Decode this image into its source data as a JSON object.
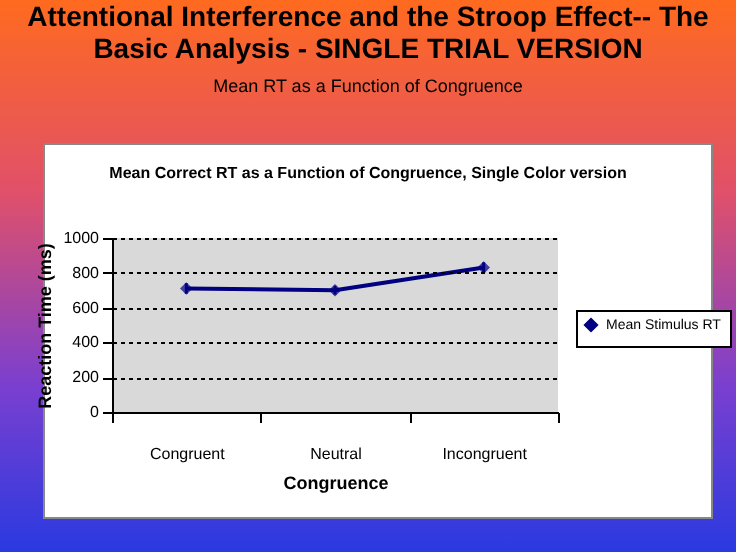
{
  "chart_data": {
    "type": "line",
    "title": "Attentional Interference and the Stroop Effect-- The Basic Analysis - SINGLE TRIAL VERSION",
    "subtitle": "Mean RT as a Function of Congruence",
    "annotations": [
      "Mean Correct RT as a Function of  Congruence, Single Color version"
    ],
    "xlabel": "Congruence",
    "ylabel": "Reaction Time (ms)",
    "categories": [
      "Congruent",
      "Neutral",
      "Incongruent"
    ],
    "series": [
      {
        "name": "Mean Stimulus RT",
        "color": "#000080",
        "values": [
          710,
          700,
          830
        ],
        "errors": [
          30,
          25,
          30
        ]
      }
    ],
    "ylim": [
      0,
      1000
    ],
    "yticks": [
      0,
      200,
      400,
      600,
      800,
      1000
    ],
    "grid": "y",
    "legend": "right",
    "marker": "diamond",
    "line_style": "solid"
  }
}
